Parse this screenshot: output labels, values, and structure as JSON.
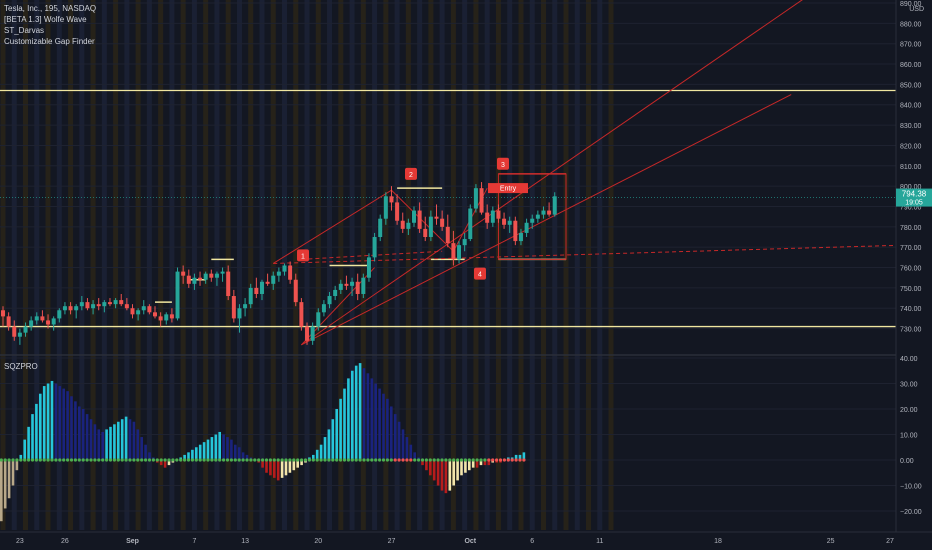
{
  "legend": {
    "symbol": "Tesla, Inc., 195, NASDAQ",
    "indicators": [
      "[BETA 1.3] Wolfe Wave",
      "ST_Darvas",
      "Customizable Gap Finder"
    ]
  },
  "oscillator_label": "SQZPRO",
  "currency": "USD",
  "price_label": {
    "value": "794.38",
    "countdown": "19:05"
  },
  "entry_label": "Entry",
  "wolfe_points": [
    "1",
    "2",
    "3",
    "4"
  ],
  "chart_data": [
    {
      "type": "candlestick",
      "ylim": [
        718,
        890
      ],
      "y_ticks": [
        730,
        740,
        750,
        760,
        770,
        780,
        790,
        800,
        810,
        820,
        830,
        840,
        850,
        860,
        870,
        880,
        890
      ],
      "y_tick_labels": [
        "730.00",
        "740.00",
        "750.00",
        "760.00",
        "770.00",
        "780.00",
        "790.00",
        "800.00",
        "810.00",
        "820.00",
        "830.00",
        "840.00",
        "850.00",
        "860.00",
        "870.00",
        "880.00",
        "890.00"
      ],
      "x_ticks": [
        {
          "label": "23",
          "bar": 3
        },
        {
          "label": "26",
          "bar": 11
        },
        {
          "label": "Sep",
          "bar": 23
        },
        {
          "label": "7",
          "bar": 34
        },
        {
          "label": "13",
          "bar": 43
        },
        {
          "label": "20",
          "bar": 56
        },
        {
          "label": "27",
          "bar": 69
        },
        {
          "label": "Oct",
          "bar": 83
        },
        {
          "label": "6",
          "bar": 94
        },
        {
          "label": "11",
          "bar": 106
        },
        {
          "label": "18",
          "bar": 127
        },
        {
          "label": "25",
          "bar": 147
        },
        {
          "label": "27",
          "bar": 155
        }
      ],
      "last_price": 794.38,
      "horizontal_levels": [
        847,
        731
      ],
      "darvas_boxes": [
        {
          "bar0": 27,
          "bar1": 30,
          "price": 743
        },
        {
          "bar0": 33,
          "bar1": 36,
          "price": 754
        },
        {
          "bar0": 37,
          "bar1": 41,
          "price": 764
        },
        {
          "bar0": 58,
          "bar1": 65,
          "price": 761
        },
        {
          "bar0": 70,
          "bar1": 78,
          "price": 799
        },
        {
          "bar0": 76,
          "bar1": 82,
          "price": 764
        },
        {
          "bar0": 88,
          "bar1": 100,
          "price": 806
        },
        {
          "bar0": 88,
          "bar1": 100,
          "price": 764
        }
      ],
      "candles": [
        [
          739,
          741,
          731,
          736
        ],
        [
          736,
          738,
          729,
          731
        ],
        [
          731,
          734,
          724,
          726
        ],
        [
          726,
          730,
          722,
          728
        ],
        [
          728,
          733,
          726,
          731
        ],
        [
          731,
          736,
          729,
          734
        ],
        [
          734,
          738,
          732,
          736
        ],
        [
          736,
          739,
          733,
          734
        ],
        [
          734,
          737,
          730,
          732
        ],
        [
          732,
          736,
          729,
          735
        ],
        [
          735,
          740,
          733,
          739
        ],
        [
          739,
          743,
          737,
          741
        ],
        [
          741,
          743,
          737,
          739
        ],
        [
          739,
          742,
          735,
          741
        ],
        [
          741,
          746,
          739,
          743
        ],
        [
          743,
          745,
          739,
          740
        ],
        [
          740,
          744,
          737,
          742
        ],
        [
          742,
          745,
          739,
          741
        ],
        [
          741,
          744,
          738,
          743
        ],
        [
          743,
          745,
          741,
          742
        ],
        [
          742,
          745,
          740,
          744
        ],
        [
          744,
          747,
          741,
          742
        ],
        [
          742,
          745,
          739,
          740
        ],
        [
          740,
          742,
          735,
          737
        ],
        [
          737,
          740,
          734,
          739
        ],
        [
          739,
          744,
          737,
          741
        ],
        [
          741,
          742,
          737,
          738
        ],
        [
          738,
          741,
          735,
          736
        ],
        [
          736,
          738,
          731,
          734
        ],
        [
          734,
          738,
          732,
          737
        ],
        [
          737,
          740,
          733,
          735
        ],
        [
          735,
          760,
          734,
          758
        ],
        [
          758,
          761,
          752,
          756
        ],
        [
          756,
          759,
          750,
          752
        ],
        [
          752,
          757,
          749,
          755
        ],
        [
          755,
          758,
          751,
          754
        ],
        [
          754,
          758,
          752,
          757
        ],
        [
          757,
          759,
          753,
          755
        ],
        [
          755,
          758,
          751,
          757
        ],
        [
          757,
          760,
          753,
          758
        ],
        [
          758,
          761,
          744,
          746
        ],
        [
          746,
          749,
          733,
          735
        ],
        [
          735,
          742,
          728,
          740
        ],
        [
          740,
          745,
          736,
          742
        ],
        [
          742,
          752,
          740,
          750
        ],
        [
          750,
          755,
          745,
          747
        ],
        [
          747,
          754,
          744,
          753
        ],
        [
          753,
          757,
          751,
          752
        ],
        [
          752,
          758,
          749,
          756
        ],
        [
          756,
          760,
          753,
          758
        ],
        [
          758,
          762,
          756,
          761
        ],
        [
          761,
          763,
          752,
          754
        ],
        [
          754,
          757,
          741,
          743
        ],
        [
          743,
          745,
          729,
          731
        ],
        [
          731,
          733,
          722,
          724
        ],
        [
          724,
          733,
          722,
          731
        ],
        [
          731,
          740,
          729,
          738
        ],
        [
          738,
          744,
          736,
          742
        ],
        [
          742,
          748,
          740,
          746
        ],
        [
          746,
          751,
          744,
          749
        ],
        [
          749,
          754,
          747,
          752
        ],
        [
          752,
          756,
          749,
          751
        ],
        [
          751,
          755,
          746,
          753
        ],
        [
          753,
          757,
          744,
          747
        ],
        [
          747,
          757,
          745,
          755
        ],
        [
          755,
          767,
          753,
          765
        ],
        [
          765,
          777,
          763,
          775
        ],
        [
          775,
          786,
          773,
          784
        ],
        [
          784,
          797,
          781,
          795
        ],
        [
          795,
          800,
          788,
          792
        ],
        [
          792,
          796,
          781,
          783
        ],
        [
          783,
          787,
          777,
          779
        ],
        [
          779,
          784,
          776,
          782
        ],
        [
          782,
          790,
          780,
          788
        ],
        [
          788,
          792,
          777,
          779
        ],
        [
          779,
          785,
          773,
          775
        ],
        [
          775,
          788,
          773,
          785
        ],
        [
          785,
          791,
          781,
          784
        ],
        [
          784,
          788,
          778,
          780
        ],
        [
          780,
          786,
          770,
          772
        ],
        [
          772,
          778,
          761,
          764
        ],
        [
          764,
          773,
          762,
          771
        ],
        [
          771,
          777,
          768,
          774
        ],
        [
          774,
          791,
          773,
          789
        ],
        [
          789,
          801,
          787,
          799
        ],
        [
          799,
          802,
          786,
          787
        ],
        [
          787,
          791,
          779,
          782
        ],
        [
          782,
          790,
          780,
          788
        ],
        [
          788,
          791,
          782,
          784
        ],
        [
          784,
          787,
          779,
          781
        ],
        [
          781,
          785,
          777,
          783
        ],
        [
          783,
          785,
          771,
          773
        ],
        [
          773,
          779,
          771,
          777
        ],
        [
          777,
          784,
          775,
          782
        ],
        [
          782,
          786,
          779,
          784
        ],
        [
          784,
          788,
          782,
          786
        ],
        [
          786,
          790,
          784,
          788
        ],
        [
          788,
          792,
          785,
          786
        ],
        [
          786,
          797,
          785,
          795
        ]
      ]
    },
    {
      "type": "bar",
      "name": "SQZPRO",
      "ylim": [
        -27,
        44
      ],
      "y_ticks": [
        -20,
        -10,
        0,
        10,
        20,
        30,
        40
      ],
      "y_tick_labels": [
        "−20.00",
        "−10.00",
        "0.00",
        "10.00",
        "20.00",
        "30.00",
        "40.00"
      ],
      "values": [
        -24,
        -19,
        -15,
        -10,
        -4,
        2,
        8,
        13,
        18,
        22,
        26,
        29,
        30,
        31,
        30,
        29,
        28,
        27,
        25,
        23,
        21,
        20,
        18,
        16,
        14,
        12,
        11,
        12,
        13,
        14,
        15,
        16,
        17,
        16,
        15,
        12,
        9,
        6,
        3,
        1,
        -1,
        -2,
        -3,
        -2,
        -1,
        0,
        1,
        2,
        3,
        4,
        5,
        6,
        7,
        8,
        9,
        10,
        11,
        10,
        9,
        8,
        6,
        5,
        3,
        2,
        1,
        0,
        -1,
        -3,
        -5,
        -6,
        -7,
        -8,
        -7,
        -6,
        -5,
        -4,
        -3,
        -2,
        -1,
        1,
        2,
        4,
        6,
        9,
        12,
        16,
        20,
        24,
        28,
        32,
        35,
        37,
        38,
        36,
        34,
        32,
        30,
        28,
        26,
        24,
        21,
        18,
        15,
        12,
        9,
        6,
        3,
        1,
        -2,
        -4,
        -6,
        -8,
        -10,
        -12,
        -13,
        -12,
        -10,
        -8,
        -6,
        -5,
        -4,
        -3,
        -3,
        -2,
        -2,
        -2,
        -1,
        -1,
        -1,
        0,
        1,
        1,
        2,
        2,
        3
      ]
    }
  ]
}
